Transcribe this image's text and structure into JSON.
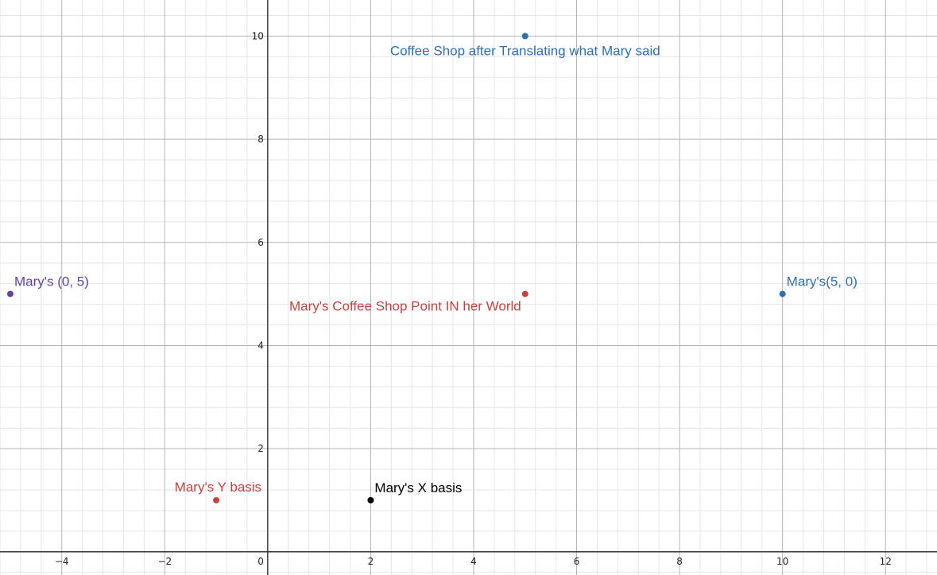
{
  "chart_data": {
    "type": "scatter",
    "grid": true,
    "xlim": [
      -5.2,
      13.0
    ],
    "ylim": [
      -0.45,
      10.7
    ],
    "x_ticks": [
      -4,
      -2,
      2,
      4,
      6,
      8,
      10,
      12
    ],
    "y_ticks": [
      2,
      4,
      6,
      8,
      10
    ],
    "origin_label": "0",
    "points": [
      {
        "name": "Coffee Shop after Translating what Mary said",
        "x": 5,
        "y": 10,
        "color": "#2d70b3",
        "label_pos": "below"
      },
      {
        "name": "Mary's (0, 5)",
        "x": -5,
        "y": 5,
        "color": "#6042a6",
        "label_pos": "above-right"
      },
      {
        "name": "Mary's Coffee Shop Point IN her World",
        "x": 5,
        "y": 5,
        "color": "#c74440",
        "label_pos": "below-left"
      },
      {
        "name": "Mary's(5, 0)",
        "x": 10,
        "y": 5,
        "color": "#2d70b3",
        "label_pos": "above-right"
      },
      {
        "name": "Mary's Y basis",
        "x": -1,
        "y": 1,
        "color": "#c74440",
        "label_pos": "above-left"
      },
      {
        "name": "Mary's X basis",
        "x": 2,
        "y": 1,
        "color": "#000000",
        "label_pos": "above-right"
      }
    ]
  }
}
